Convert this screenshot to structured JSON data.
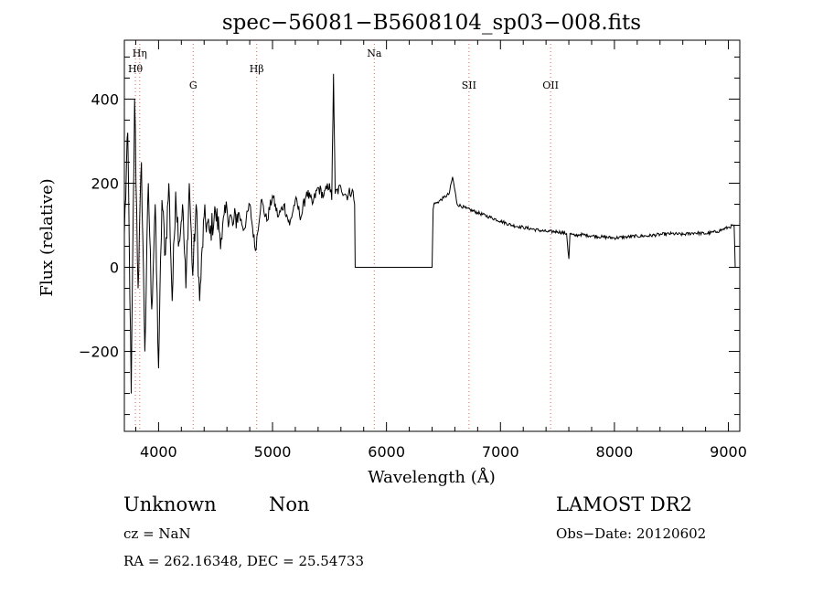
{
  "chart_data": {
    "type": "line",
    "title": "spec−56081−B5608104_sp03−008.fits",
    "xlabel": "Wavelength (Å)",
    "ylabel": "Flux (relative)",
    "xlim": [
      3700,
      9100
    ],
    "ylim": [
      -390,
      540
    ],
    "xticks": [
      4000,
      5000,
      6000,
      7000,
      8000,
      9000
    ],
    "yticks": [
      -200,
      0,
      200,
      400
    ],
    "line_color": "#000000",
    "marker_color": "#e06060",
    "lines": [
      {
        "label": "Hη",
        "lam": 3835,
        "level": 1
      },
      {
        "label": "Hθ",
        "lam": 3797,
        "level": 2
      },
      {
        "label": "G",
        "lam": 4304,
        "level": 3
      },
      {
        "label": "Hβ",
        "lam": 4861,
        "level": 2
      },
      {
        "label": "Na",
        "lam": 5893,
        "level": 1
      },
      {
        "label": "SII",
        "lam": 6724,
        "level": 3
      },
      {
        "label": "OII",
        "lam": 7440,
        "level": 3
      }
    ],
    "series": [
      {
        "name": "flux",
        "x": [
          3700,
          3730,
          3760,
          3790,
          3820,
          3850,
          3880,
          3910,
          3940,
          3970,
          4000,
          4030,
          4060,
          4090,
          4120,
          4150,
          4180,
          4210,
          4240,
          4270,
          4300,
          4330,
          4360,
          4400,
          4450,
          4500,
          4550,
          4600,
          4650,
          4700,
          4750,
          4800,
          4850,
          4900,
          4950,
          5000,
          5050,
          5100,
          5150,
          5200,
          5250,
          5300,
          5350,
          5400,
          5450,
          5500,
          5520,
          5535,
          5550,
          5600,
          5650,
          5700,
          5720,
          5725,
          6100,
          6400,
          6410,
          6415,
          6450,
          6500,
          6550,
          6580,
          6620,
          6700,
          6800,
          6900,
          7000,
          7100,
          7200,
          7300,
          7400,
          7500,
          7580,
          7600,
          7610,
          7650,
          7700,
          7800,
          7900,
          8000,
          8100,
          8200,
          8300,
          8400,
          8500,
          8600,
          8700,
          8800,
          8900,
          8950,
          9000,
          9050,
          9060
        ],
        "values": [
          80,
          320,
          -300,
          400,
          -50,
          250,
          -200,
          200,
          -100,
          150,
          -240,
          160,
          30,
          200,
          -80,
          180,
          60,
          150,
          -50,
          200,
          -20,
          150,
          -80,
          120,
          80,
          130,
          70,
          140,
          100,
          130,
          90,
          150,
          40,
          160,
          110,
          170,
          120,
          150,
          100,
          160,
          120,
          180,
          150,
          190,
          170,
          200,
          160,
          460,
          175,
          190,
          170,
          185,
          150,
          0,
          0,
          0,
          140,
          150,
          155,
          165,
          175,
          215,
          150,
          140,
          130,
          120,
          110,
          100,
          95,
          90,
          85,
          85,
          80,
          20,
          80,
          75,
          78,
          75,
          72,
          70,
          72,
          74,
          75,
          78,
          80,
          78,
          82,
          80,
          85,
          90,
          95,
          100,
          0
        ]
      }
    ]
  },
  "footer": {
    "object_class": "Unknown",
    "subclass": "Non",
    "survey": "LAMOST DR2",
    "cz": "cz = NaN",
    "obs_date": "Obs−Date: 20120602",
    "coords": "RA = 262.16348, DEC =  25.54733"
  }
}
